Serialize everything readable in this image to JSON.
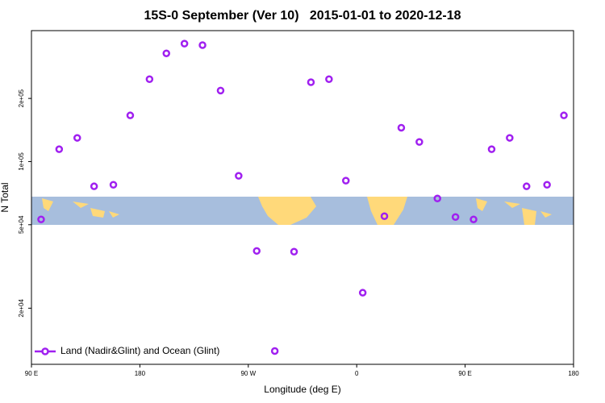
{
  "chart_data": {
    "type": "scatter",
    "title": "15S-0 September (Ver 10)   2015-01-01 to 2020-12-18",
    "x_label": "Longitude (deg E)",
    "y_label": "N Total",
    "yscale": "log",
    "xlim": [
      90,
      540
    ],
    "ylim": [
      10800,
      421000
    ],
    "xticks": [
      {
        "value": 90,
        "label": "90 E"
      },
      180,
      {
        "value": 270,
        "label": "90 W"
      },
      {
        "value": 360,
        "label": "0"
      },
      {
        "value": 450,
        "label": "90 E"
      },
      {
        "value": 540,
        "label": "180"
      }
    ],
    "yticks": [
      {
        "value": 20000,
        "label": "2e+04"
      },
      {
        "value": 50000,
        "label": "5e+04"
      },
      {
        "value": 100000,
        "label": "1e+05"
      },
      {
        "value": 200000,
        "label": "2e+05"
      }
    ],
    "legend": "bottom-left",
    "series": [
      {
        "name": "Land (Nadir&Glint) and Ocean (Glint)",
        "color": "#a020f0",
        "x": [
          98,
          113,
          128,
          142,
          158,
          172,
          188,
          202,
          217,
          232,
          247,
          262,
          277,
          292,
          308,
          322,
          337,
          351,
          365,
          383,
          397,
          412,
          427,
          442,
          457,
          472,
          487,
          501,
          518,
          532
        ],
        "values": [
          53000,
          114500,
          129700,
          76200,
          77500,
          166000,
          247000,
          328000,
          365000,
          359000,
          218000,
          85500,
          37500,
          12500,
          37200,
          239000,
          247000,
          81100,
          23700,
          54900,
          145000,
          124000,
          66700,
          54400,
          53000,
          114500,
          129700,
          76200,
          77500,
          166000
        ]
      }
    ]
  }
}
